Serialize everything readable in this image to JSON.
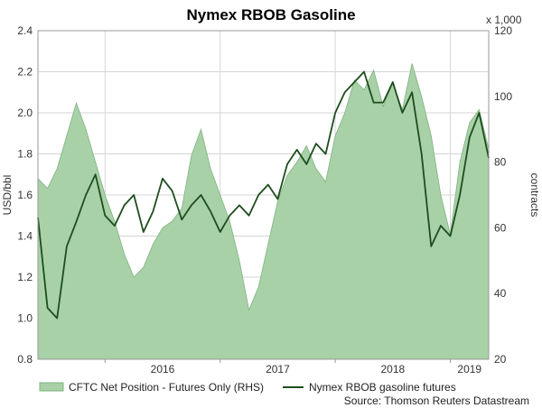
{
  "chart_data": {
    "type": "area+line",
    "title": "Nymex RBOB Gasoline",
    "ylabel_left": "USD/bbl",
    "ylabel_right": "contracts",
    "right_multiplier": "x 1,000",
    "source": "Source: Thomson Reuters Datastream",
    "ylim_left": [
      0.8,
      2.4
    ],
    "ylim_right": [
      20,
      120
    ],
    "yticks_left": [
      "0.8",
      "1.0",
      "1.2",
      "1.4",
      "1.6",
      "1.8",
      "2.0",
      "2.2",
      "2.4"
    ],
    "yticks_right": [
      "20",
      "40",
      "60",
      "80",
      "100",
      "120"
    ],
    "x_start": "2015-06",
    "x_end": "2019-05",
    "x_labels": [
      "2016",
      "2017",
      "2018",
      "2019"
    ],
    "grid": true,
    "legend_position": "bottom",
    "series": [
      {
        "name": "CFTC Net Position - Futures Only (RHS)",
        "axis": "right",
        "kind": "area",
        "color": "#a8d1a8",
        "edge_color": "#7fb27f",
        "x": [
          "2015-06",
          "2015-07",
          "2015-08",
          "2015-09",
          "2015-10",
          "2015-11",
          "2015-12",
          "2016-01",
          "2016-02",
          "2016-03",
          "2016-04",
          "2016-05",
          "2016-06",
          "2016-07",
          "2016-08",
          "2016-09",
          "2016-10",
          "2016-11",
          "2016-12",
          "2017-01",
          "2017-02",
          "2017-03",
          "2017-04",
          "2017-05",
          "2017-06",
          "2017-07",
          "2017-08",
          "2017-09",
          "2017-10",
          "2017-11",
          "2017-12",
          "2018-01",
          "2018-02",
          "2018-03",
          "2018-04",
          "2018-05",
          "2018-06",
          "2018-07",
          "2018-08",
          "2018-09",
          "2018-10",
          "2018-11",
          "2018-12",
          "2019-01",
          "2019-02",
          "2019-03",
          "2019-04",
          "2019-05"
        ],
        "values": [
          75,
          72,
          78,
          88,
          98,
          90,
          80,
          70,
          62,
          52,
          45,
          48,
          55,
          60,
          62,
          66,
          82,
          90,
          78,
          70,
          62,
          50,
          35,
          42,
          55,
          68,
          76,
          80,
          85,
          78,
          74,
          88,
          95,
          105,
          102,
          108,
          97,
          104,
          96,
          110,
          100,
          88,
          70,
          58,
          80,
          92,
          96,
          84
        ]
      },
      {
        "name": "Nymex RBOB gasoline futures",
        "axis": "left",
        "kind": "line",
        "color": "#1e4d1e",
        "x": [
          "2015-06",
          "2015-07",
          "2015-08",
          "2015-09",
          "2015-10",
          "2015-11",
          "2015-12",
          "2016-01",
          "2016-02",
          "2016-03",
          "2016-04",
          "2016-05",
          "2016-06",
          "2016-07",
          "2016-08",
          "2016-09",
          "2016-10",
          "2016-11",
          "2016-12",
          "2017-01",
          "2017-02",
          "2017-03",
          "2017-04",
          "2017-05",
          "2017-06",
          "2017-07",
          "2017-08",
          "2017-09",
          "2017-10",
          "2017-11",
          "2017-12",
          "2018-01",
          "2018-02",
          "2018-03",
          "2018-04",
          "2018-05",
          "2018-06",
          "2018-07",
          "2018-08",
          "2018-09",
          "2018-10",
          "2018-11",
          "2018-12",
          "2019-01",
          "2019-02",
          "2019-03",
          "2019-04",
          "2019-05"
        ],
        "values": [
          1.49,
          1.05,
          1.0,
          1.35,
          1.47,
          1.6,
          1.7,
          1.5,
          1.45,
          1.55,
          1.6,
          1.42,
          1.52,
          1.68,
          1.62,
          1.48,
          1.55,
          1.6,
          1.52,
          1.42,
          1.5,
          1.55,
          1.5,
          1.6,
          1.65,
          1.58,
          1.75,
          1.82,
          1.75,
          1.85,
          1.8,
          2.0,
          2.1,
          2.15,
          2.2,
          2.05,
          2.05,
          2.15,
          2.0,
          2.1,
          1.8,
          1.35,
          1.45,
          1.4,
          1.6,
          1.88,
          2.0,
          1.78
        ]
      }
    ]
  }
}
